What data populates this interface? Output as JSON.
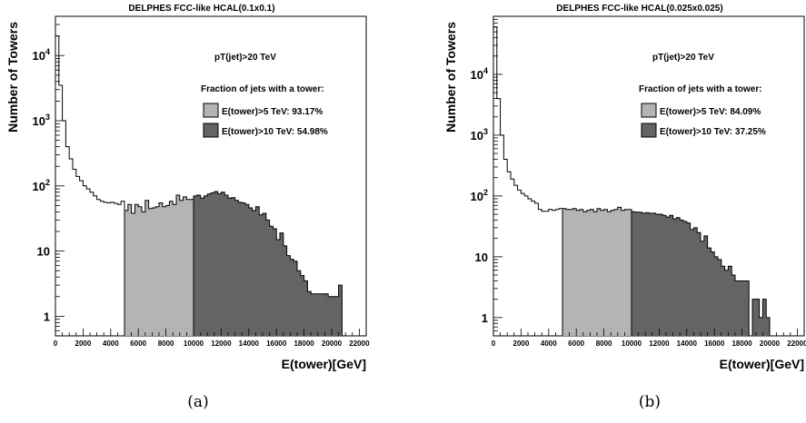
{
  "chart_data": [
    {
      "type": "bar",
      "title": "DELPHES FCC-like HCAL(0.1x0.1)",
      "xlabel": "E(tower)[GeV]",
      "ylabel": "Number of Towers",
      "caption": "(a)",
      "log_y": true,
      "xlim": [
        0,
        22500
      ],
      "ylim": [
        0.5,
        40000
      ],
      "x_ticks": [
        "0",
        "2000",
        "4000",
        "6000",
        "8000",
        "10000",
        "12000",
        "14000",
        "16000",
        "18000",
        "20000",
        "22000"
      ],
      "y_ticks": [
        "1",
        "10",
        "10^2",
        "10^3",
        "10^4"
      ],
      "annotation_1": "pT(jet)>20 TeV",
      "annotation_2": "Fraction of jets with a tower:",
      "legend": [
        {
          "label": "E(tower)>5 TeV: 93.17%",
          "color": "#b4b4b4"
        },
        {
          "label": "E(tower)>10 TeV: 54.98%",
          "color": "#646464"
        }
      ],
      "bin_width": 250,
      "bins_low_edge": [
        0,
        250,
        500,
        750,
        1000,
        1250,
        1500,
        1750,
        2000,
        2250,
        2500,
        2750,
        3000,
        3250,
        3500,
        3750,
        4000,
        4250,
        4500,
        4750,
        5000,
        5250,
        5500,
        5750,
        6000,
        6250,
        6500,
        6750,
        7000,
        7250,
        7500,
        7750,
        8000,
        8250,
        8500,
        8750,
        9000,
        9250,
        9500,
        9750,
        10000,
        10250,
        10500,
        10750,
        11000,
        11250,
        11500,
        11750,
        12000,
        12250,
        12500,
        12750,
        13000,
        13250,
        13500,
        13750,
        14000,
        14250,
        14500,
        14750,
        15000,
        15250,
        15500,
        15750,
        16000,
        16250,
        16500,
        16750,
        17000,
        17250,
        17500,
        17750,
        18000,
        18250,
        18500,
        18750,
        19000,
        19250,
        19500,
        19750,
        20000,
        20250,
        20500,
        20750,
        21000,
        21250,
        21500,
        21750
      ],
      "values": [
        20000,
        3500,
        1000,
        400,
        260,
        180,
        140,
        120,
        100,
        90,
        80,
        70,
        62,
        58,
        56,
        55,
        56,
        54,
        52,
        58,
        42,
        52,
        38,
        52,
        48,
        40,
        60,
        45,
        46,
        48,
        55,
        48,
        50,
        58,
        52,
        72,
        60,
        68,
        62,
        62,
        70,
        72,
        65,
        70,
        75,
        78,
        82,
        76,
        80,
        72,
        65,
        66,
        60,
        56,
        55,
        52,
        46,
        42,
        48,
        36,
        38,
        30,
        24,
        22,
        15,
        19,
        12,
        8.5,
        7.5,
        7,
        5,
        4.2,
        3.5,
        2.4,
        2.2,
        2.2,
        2.2,
        2.2,
        2.2,
        2,
        2,
        2,
        3,
        0.5,
        0,
        0,
        0,
        0
      ]
    },
    {
      "type": "bar",
      "title": "DELPHES FCC-like HCAL(0.025x0.025)",
      "xlabel": "E(tower)[GeV]",
      "ylabel": "Number of Towers",
      "caption": "(b)",
      "log_y": true,
      "xlim": [
        0,
        22500
      ],
      "ylim": [
        0.5,
        90000
      ],
      "x_ticks": [
        "0",
        "2000",
        "4000",
        "6000",
        "8000",
        "10000",
        "12000",
        "14000",
        "16000",
        "18000",
        "20000",
        "22000"
      ],
      "y_ticks": [
        "1",
        "10",
        "10^2",
        "10^3",
        "10^4"
      ],
      "annotation_1": "pT(jet)>20 TeV",
      "annotation_2": "Fraction of jets with a tower:",
      "legend": [
        {
          "label": "E(tower)>5 TeV: 84.09%",
          "color": "#b4b4b4"
        },
        {
          "label": "E(tower)>10 TeV: 37.25%",
          "color": "#646464"
        }
      ],
      "bin_width": 250,
      "bins_low_edge": [
        0,
        250,
        500,
        750,
        1000,
        1250,
        1500,
        1750,
        2000,
        2250,
        2500,
        2750,
        3000,
        3250,
        3500,
        3750,
        4000,
        4250,
        4500,
        4750,
        5000,
        5250,
        5500,
        5750,
        6000,
        6250,
        6500,
        6750,
        7000,
        7250,
        7500,
        7750,
        8000,
        8250,
        8500,
        8750,
        9000,
        9250,
        9500,
        9750,
        10000,
        10250,
        10500,
        10750,
        11000,
        11250,
        11500,
        11750,
        12000,
        12250,
        12500,
        12750,
        13000,
        13250,
        13500,
        13750,
        14000,
        14250,
        14500,
        14750,
        15000,
        15250,
        15500,
        15750,
        16000,
        16250,
        16500,
        16750,
        17000,
        17250,
        17500,
        17750,
        18000,
        18250,
        18500,
        18750,
        19000,
        19250,
        19500,
        19750,
        20000,
        20250,
        20500,
        20750,
        21000,
        21250,
        21500,
        21750
      ],
      "values": [
        60000,
        4000,
        1000,
        400,
        250,
        190,
        150,
        125,
        110,
        100,
        90,
        82,
        76,
        60,
        56,
        56,
        60,
        58,
        60,
        62,
        62,
        60,
        60,
        62,
        58,
        60,
        55,
        58,
        60,
        55,
        62,
        58,
        60,
        55,
        58,
        60,
        65,
        58,
        60,
        60,
        55,
        54,
        54,
        52,
        53,
        52,
        52,
        50,
        50,
        48,
        45,
        48,
        42,
        44,
        40,
        38,
        36,
        28,
        30,
        25,
        18,
        22,
        14,
        12,
        10,
        9,
        7,
        6,
        7,
        5,
        4,
        4,
        4,
        4,
        0.5,
        2,
        2,
        1,
        2,
        1,
        0.5,
        0,
        0,
        0,
        0,
        0,
        0,
        0
      ]
    }
  ]
}
